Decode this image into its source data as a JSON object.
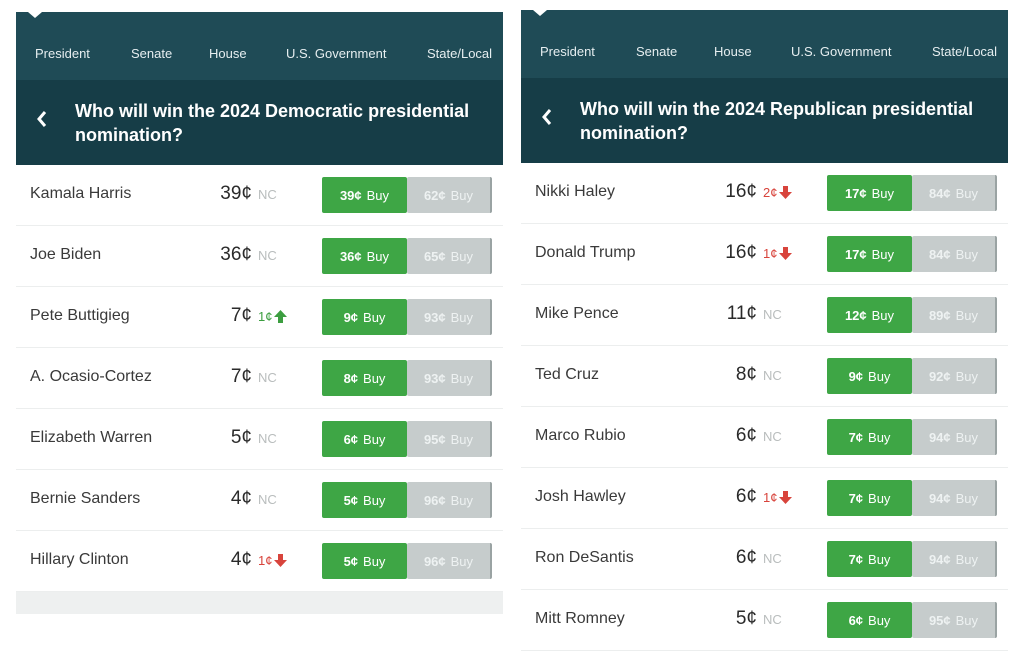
{
  "panels": [
    {
      "nav": [
        "President",
        "Senate",
        "House",
        "U.S. Government",
        "State/Local"
      ],
      "title": "Who will win the 2024 Democratic presidential nomination?",
      "buy_label": "Buy",
      "rows": [
        {
          "name": "Kamala Harris",
          "price": "39¢",
          "change": "NC",
          "direction": null,
          "yes": "39¢",
          "no": "62¢"
        },
        {
          "name": "Joe Biden",
          "price": "36¢",
          "change": "NC",
          "direction": null,
          "yes": "36¢",
          "no": "65¢"
        },
        {
          "name": "Pete Buttigieg",
          "price": "7¢",
          "change": "1¢",
          "direction": "up",
          "yes": "9¢",
          "no": "93¢"
        },
        {
          "name": "A. Ocasio-Cortez",
          "price": "7¢",
          "change": "NC",
          "direction": null,
          "yes": "8¢",
          "no": "93¢"
        },
        {
          "name": "Elizabeth Warren",
          "price": "5¢",
          "change": "NC",
          "direction": null,
          "yes": "6¢",
          "no": "95¢"
        },
        {
          "name": "Bernie Sanders",
          "price": "4¢",
          "change": "NC",
          "direction": null,
          "yes": "5¢",
          "no": "96¢"
        },
        {
          "name": "Hillary Clinton",
          "price": "4¢",
          "change": "1¢",
          "direction": "down",
          "yes": "5¢",
          "no": "96¢"
        }
      ]
    },
    {
      "nav": [
        "President",
        "Senate",
        "House",
        "U.S. Government",
        "State/Local"
      ],
      "title": "Who will win the 2024 Republican presidential nomination?",
      "buy_label": "Buy",
      "rows": [
        {
          "name": "Nikki Haley",
          "price": "16¢",
          "change": "2¢",
          "direction": "down",
          "yes": "17¢",
          "no": "84¢"
        },
        {
          "name": "Donald Trump",
          "price": "16¢",
          "change": "1¢",
          "direction": "down",
          "yes": "17¢",
          "no": "84¢"
        },
        {
          "name": "Mike Pence",
          "price": "11¢",
          "change": "NC",
          "direction": null,
          "yes": "12¢",
          "no": "89¢"
        },
        {
          "name": "Ted Cruz",
          "price": "8¢",
          "change": "NC",
          "direction": null,
          "yes": "9¢",
          "no": "92¢"
        },
        {
          "name": "Marco Rubio",
          "price": "6¢",
          "change": "NC",
          "direction": null,
          "yes": "7¢",
          "no": "94¢"
        },
        {
          "name": "Josh Hawley",
          "price": "6¢",
          "change": "1¢",
          "direction": "down",
          "yes": "7¢",
          "no": "94¢"
        },
        {
          "name": "Ron DeSantis",
          "price": "6¢",
          "change": "NC",
          "direction": null,
          "yes": "7¢",
          "no": "94¢"
        },
        {
          "name": "Mitt Romney",
          "price": "5¢",
          "change": "NC",
          "direction": null,
          "yes": "6¢",
          "no": "95¢"
        }
      ]
    }
  ]
}
